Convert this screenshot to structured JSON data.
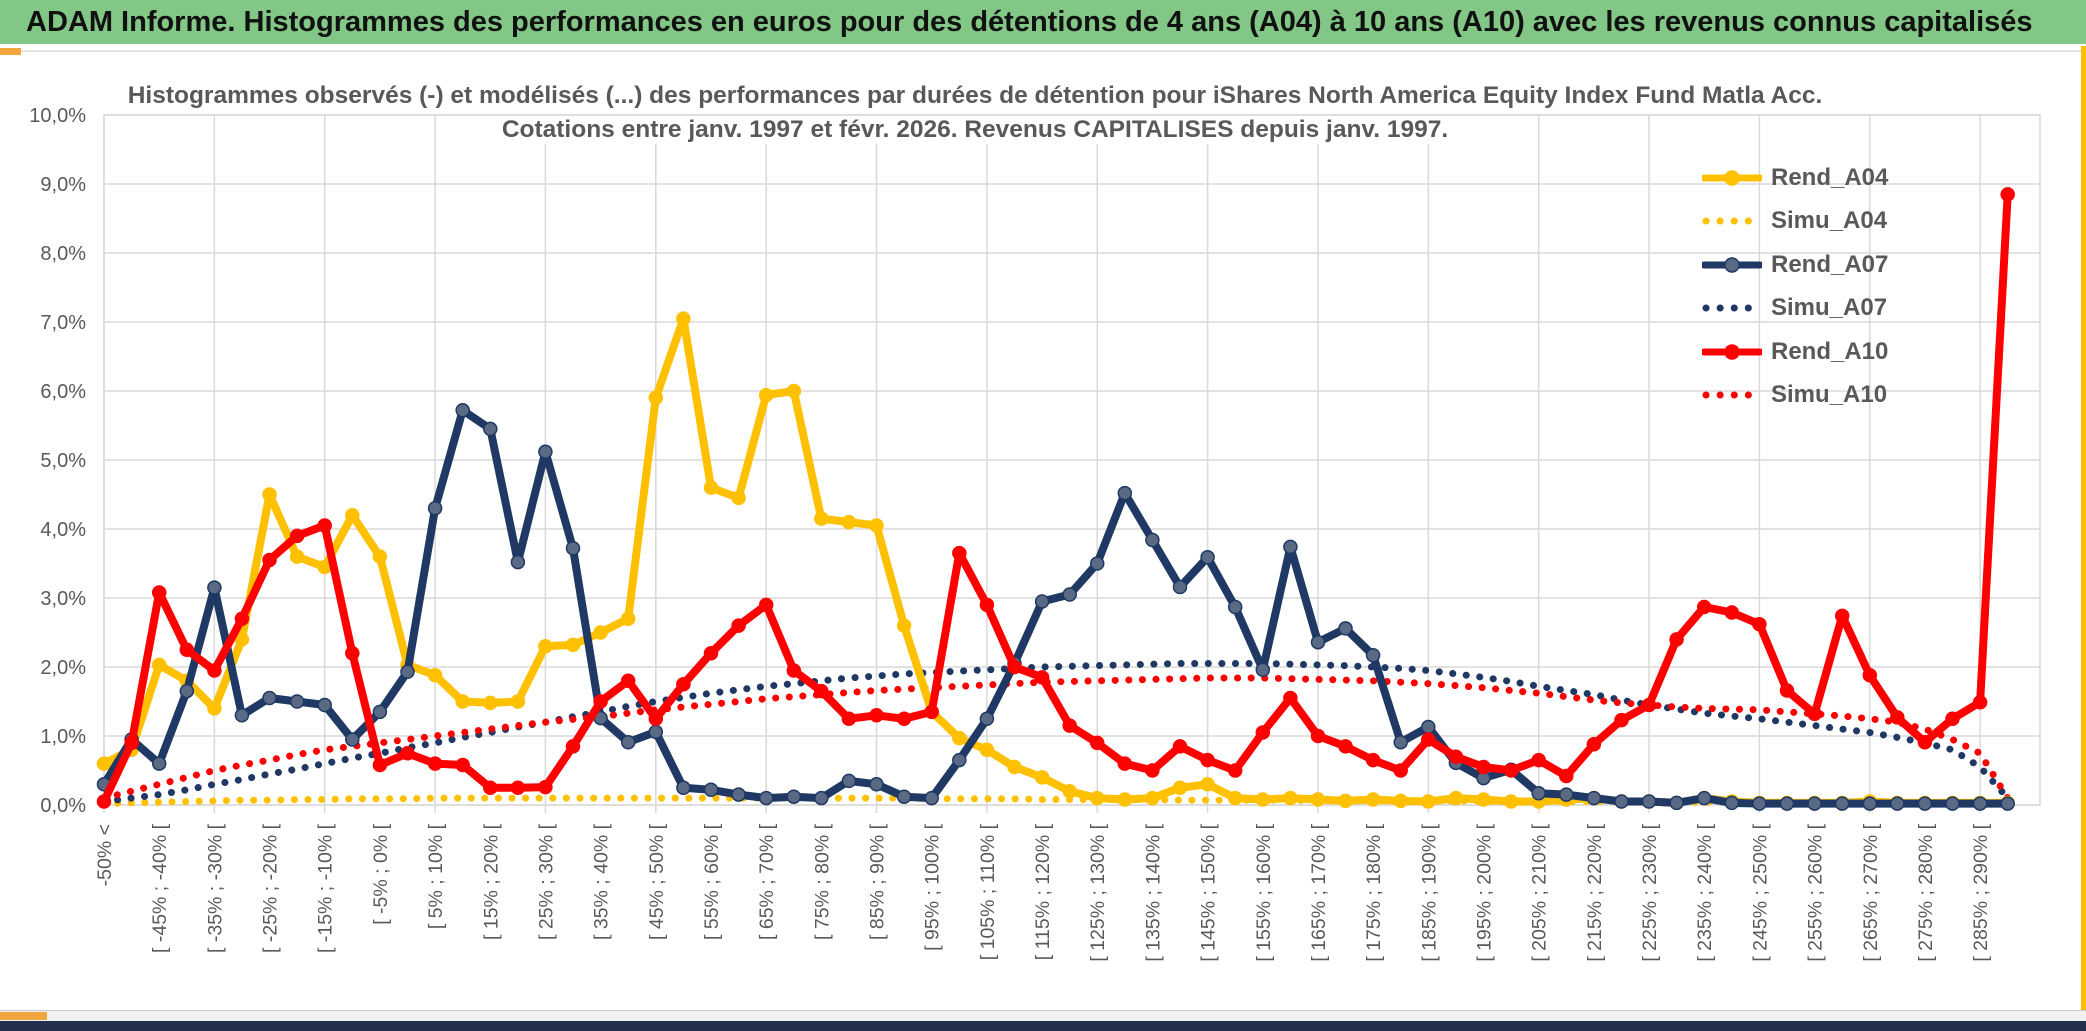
{
  "window": {
    "banner_title": "ADAM Informe. Histogrammes des performances en euros pour des détentions de 4 ans (A04) à 10 ans (A10) avec les revenus connus capitalisés"
  },
  "chart_data": {
    "type": "line",
    "title_line1": "Histogrammes observés (-) et modélisés (...) des performances par durées de détention pour iShares North America Equity Index Fund Matla Acc.",
    "title_line2": "Cotations entre janv. 1997 et févr. 2026. Revenus CAPITALISES depuis janv. 1997.",
    "ylim": [
      0,
      10
    ],
    "grid": true,
    "legend_position": "right-top",
    "colors": {
      "gold": "#FFC000",
      "navy": "#1F3864",
      "red": "#FF0000",
      "navy_marker": "#5A6A85",
      "grid": "#D9D9D9",
      "axis_text": "#595959",
      "title_text": "#595959"
    },
    "y_tick_labels": [
      "10,0%",
      "9,0%",
      "8,0%",
      "7,0%",
      "6,0%",
      "5,0%",
      "4,0%",
      "3,0%",
      "2,0%",
      "1,0%",
      "0,0%"
    ],
    "x_tick_labels": [
      "-50% <",
      "[ -45% ; -40% [",
      "[ -35% ; -30% [",
      "[ -25% ; -20% [",
      "[ -15% ; -10% [",
      "[ -5% ; 0% [",
      "[ 5% ; 10% [",
      "[ 15% ; 20% [",
      "[ 25% ; 30% [",
      "[ 35% ; 40% [",
      "[ 45% ; 50% [",
      "[ 55% ; 60% [",
      "[ 65% ; 70% [",
      "[ 75% ; 80% [",
      "[ 85% ; 90% [",
      "[ 95% ; 100% [",
      "[ 105% ; 110% [",
      "[ 115% ; 120% [",
      "[ 125% ; 130% [",
      "[ 135% ; 140% [",
      "[ 145% ; 150% [",
      "[ 155% ; 160% [",
      "[ 165% ; 170% [",
      "[ 175% ; 180% [",
      "[ 185% ; 190% [",
      "[ 195% ; 200% [",
      "[ 205% ; 210% [",
      "[ 215% ; 220% [",
      "[ 225% ; 230% [",
      "[ 235% ; 240% [",
      "[ 245% ; 250% [",
      "[ 255% ; 260% [",
      "[ 265% ; 270% [",
      "[ 275% ; 280% [",
      "[ 285% ; 290% ["
    ],
    "points_per_label": 2,
    "series": [
      {
        "name": "Simu_A04",
        "color": "#FFC000",
        "style": "dotted",
        "values": [
          0.02,
          0.03,
          0.04,
          0.05,
          0.06,
          0.07,
          0.07,
          0.08,
          0.08,
          0.09,
          0.09,
          0.09,
          0.1,
          0.1,
          0.1,
          0.1,
          0.1,
          0.1,
          0.1,
          0.1,
          0.1,
          0.1,
          0.1,
          0.1,
          0.1,
          0.1,
          0.1,
          0.1,
          0.1,
          0.1,
          0.09,
          0.09,
          0.09,
          0.09,
          0.08,
          0.08,
          0.08,
          0.08,
          0.08,
          0.07,
          0.07,
          0.07,
          0.07,
          0.07,
          0.06,
          0.06,
          0.06,
          0.06,
          0.06,
          0.06,
          0.05,
          0.05,
          0.05,
          0.05,
          0.05,
          0.05,
          0.04,
          0.04,
          0.04,
          0.04,
          0.04,
          0.04,
          0.03,
          0.03,
          0.03,
          0.03,
          0.03,
          0.03,
          0.03,
          0.02
        ]
      },
      {
        "name": "Simu_A07",
        "color": "#1F3864",
        "style": "dotted",
        "values": [
          0.05,
          0.1,
          0.15,
          0.22,
          0.3,
          0.37,
          0.45,
          0.52,
          0.6,
          0.68,
          0.75,
          0.83,
          0.9,
          0.98,
          1.05,
          1.13,
          1.2,
          1.28,
          1.35,
          1.43,
          1.5,
          1.56,
          1.62,
          1.67,
          1.72,
          1.76,
          1.8,
          1.84,
          1.87,
          1.9,
          1.92,
          1.94,
          1.96,
          1.98,
          2.0,
          2.01,
          2.02,
          2.03,
          2.04,
          2.05,
          2.05,
          2.05,
          2.05,
          2.04,
          2.03,
          2.02,
          2.0,
          1.98,
          1.95,
          1.9,
          1.85,
          1.79,
          1.72,
          1.66,
          1.6,
          1.52,
          1.45,
          1.39,
          1.33,
          1.29,
          1.25,
          1.2,
          1.15,
          1.1,
          1.05,
          0.98,
          0.9,
          0.8,
          0.55,
          0.1
        ]
      },
      {
        "name": "Simu_A10",
        "color": "#FF0000",
        "style": "dotted",
        "values": [
          0.1,
          0.2,
          0.3,
          0.4,
          0.5,
          0.58,
          0.65,
          0.73,
          0.8,
          0.85,
          0.9,
          0.95,
          1.0,
          1.05,
          1.1,
          1.15,
          1.2,
          1.24,
          1.28,
          1.33,
          1.38,
          1.42,
          1.46,
          1.5,
          1.54,
          1.57,
          1.6,
          1.63,
          1.66,
          1.68,
          1.7,
          1.72,
          1.74,
          1.76,
          1.78,
          1.79,
          1.8,
          1.81,
          1.82,
          1.83,
          1.84,
          1.84,
          1.84,
          1.83,
          1.82,
          1.81,
          1.8,
          1.78,
          1.76,
          1.73,
          1.7,
          1.66,
          1.62,
          1.57,
          1.52,
          1.48,
          1.45,
          1.42,
          1.4,
          1.39,
          1.38,
          1.35,
          1.32,
          1.29,
          1.25,
          1.2,
          1.1,
          0.95,
          0.75,
          0.1
        ]
      },
      {
        "name": "Rend_A04",
        "color": "#FFC000",
        "style": "solid",
        "marker_fill": "#FFC000",
        "values": [
          0.6,
          0.8,
          2.03,
          1.8,
          1.4,
          2.4,
          4.5,
          3.6,
          3.45,
          4.2,
          3.6,
          2.03,
          1.88,
          1.5,
          1.48,
          1.5,
          2.3,
          2.32,
          2.5,
          2.7,
          5.9,
          7.05,
          4.6,
          4.45,
          5.94,
          6.0,
          4.15,
          4.1,
          4.05,
          2.6,
          1.35,
          0.97,
          0.8,
          0.55,
          0.4,
          0.2,
          0.1,
          0.08,
          0.1,
          0.25,
          0.3,
          0.1,
          0.08,
          0.1,
          0.08,
          0.06,
          0.08,
          0.06,
          0.05,
          0.1,
          0.08,
          0.05,
          0.05,
          0.08,
          0.1,
          0.05,
          0.05,
          0.03,
          0.1,
          0.05,
          0.03,
          0.03,
          0.03,
          0.03,
          0.05,
          0.03,
          0.03,
          0.03,
          0.03,
          0.03
        ]
      },
      {
        "name": "Rend_A07",
        "color": "#1F3864",
        "style": "solid",
        "marker_fill": "#5A6A85",
        "values": [
          0.3,
          0.95,
          0.6,
          1.65,
          3.15,
          1.3,
          1.55,
          1.5,
          1.45,
          0.95,
          1.35,
          1.93,
          4.3,
          5.72,
          5.45,
          3.52,
          5.12,
          3.72,
          1.26,
          0.91,
          1.06,
          0.25,
          0.22,
          0.15,
          0.1,
          0.12,
          0.1,
          0.35,
          0.3,
          0.12,
          0.1,
          0.65,
          1.25,
          2.05,
          2.95,
          3.05,
          3.5,
          4.52,
          3.84,
          3.16,
          3.59,
          2.87,
          1.96,
          3.74,
          2.36,
          2.56,
          2.17,
          0.91,
          1.13,
          0.61,
          0.39,
          0.51,
          0.17,
          0.15,
          0.1,
          0.05,
          0.05,
          0.03,
          0.1,
          0.03,
          0.02,
          0.02,
          0.02,
          0.02,
          0.02,
          0.02,
          0.02,
          0.02,
          0.02,
          0.02
        ]
      },
      {
        "name": "Rend_A10",
        "color": "#FF0000",
        "style": "solid",
        "marker_fill": "#FF0000",
        "values": [
          0.05,
          0.9,
          3.08,
          2.25,
          1.95,
          2.7,
          3.55,
          3.9,
          4.05,
          2.2,
          0.58,
          0.75,
          0.6,
          0.58,
          0.25,
          0.25,
          0.26,
          0.85,
          1.5,
          1.8,
          1.25,
          1.75,
          2.2,
          2.6,
          2.9,
          1.95,
          1.65,
          1.25,
          1.3,
          1.25,
          1.35,
          3.65,
          2.9,
          2.0,
          1.85,
          1.15,
          0.9,
          0.6,
          0.5,
          0.85,
          0.65,
          0.5,
          1.05,
          1.55,
          1.0,
          0.85,
          0.65,
          0.5,
          0.95,
          0.7,
          0.55,
          0.5,
          0.65,
          0.42,
          0.88,
          1.23,
          1.45,
          2.4,
          2.87,
          2.79,
          2.62,
          1.66,
          1.32,
          2.74,
          1.88,
          1.27,
          0.91,
          1.25,
          1.49,
          8.85
        ]
      }
    ],
    "legend": [
      {
        "label": "Rend_A04",
        "series": "Rend_A04"
      },
      {
        "label": "Simu_A04",
        "series": "Simu_A04"
      },
      {
        "label": "Rend_A07",
        "series": "Rend_A07"
      },
      {
        "label": "Simu_A07",
        "series": "Simu_A07"
      },
      {
        "label": "Rend_A10",
        "series": "Rend_A10"
      },
      {
        "label": "Simu_A10",
        "series": "Simu_A10"
      }
    ]
  }
}
